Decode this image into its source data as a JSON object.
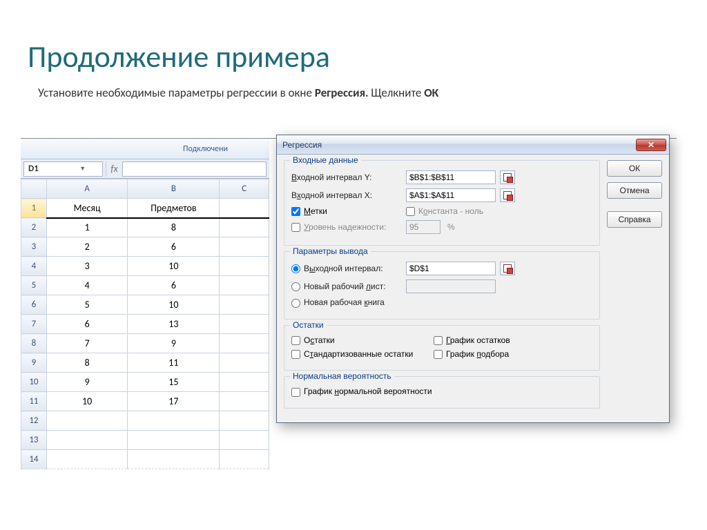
{
  "slide": {
    "title": "Продолжение примера",
    "subtitle_pre": "Установите необходимые параметры регрессии в окне ",
    "subtitle_bold1": "Регрессия.",
    "subtitle_mid": " Щелкните ",
    "subtitle_bold2": "ОК"
  },
  "ribbon": {
    "connections_label": "Подключени"
  },
  "namebox": {
    "value": "D1",
    "fx": "fx"
  },
  "sheet": {
    "columns": [
      "A",
      "B",
      "C"
    ],
    "selected_col_index": 3,
    "rows": [
      {
        "n": 1,
        "a": "Месяц",
        "b": "Предметов",
        "hdr": true
      },
      {
        "n": 2,
        "a": "1",
        "b": "8"
      },
      {
        "n": 3,
        "a": "2",
        "b": "6"
      },
      {
        "n": 4,
        "a": "3",
        "b": "10"
      },
      {
        "n": 5,
        "a": "4",
        "b": "6"
      },
      {
        "n": 6,
        "a": "5",
        "b": "10"
      },
      {
        "n": 7,
        "a": "6",
        "b": "13"
      },
      {
        "n": 8,
        "a": "7",
        "b": "9"
      },
      {
        "n": 9,
        "a": "8",
        "b": "11"
      },
      {
        "n": 10,
        "a": "9",
        "b": "15"
      },
      {
        "n": 11,
        "a": "10",
        "b": "17"
      },
      {
        "n": 12,
        "a": "",
        "b": ""
      },
      {
        "n": 13,
        "a": "",
        "b": ""
      },
      {
        "n": 14,
        "a": "",
        "b": ""
      }
    ]
  },
  "dialog": {
    "title": "Регрессия",
    "buttons": {
      "ok": "ОК",
      "cancel": "Отмена",
      "help": "Справка"
    },
    "grp_input": "Входные данные",
    "y_label": "Входной интервал Y:",
    "y_value": "$B$1:$B$11",
    "x_label": "Входной интервал X:",
    "x_value": "$A$1:$A$11",
    "labels_chk": "Метки",
    "const_zero": "Константа - ноль",
    "conf_label": "Уровень надежности:",
    "conf_value": "95",
    "pct": "%",
    "grp_output": "Параметры вывода",
    "out_range": "Выходной интервал:",
    "out_value": "$D$1",
    "new_ws": "Новый рабочий лист:",
    "new_wb": "Новая рабочая книга",
    "grp_resid": "Остатки",
    "resid": "Остатки",
    "resid_plot": "График остатков",
    "std_resid": "Стандартизованные остатки",
    "fit_plot": "График подбора",
    "grp_norm": "Нормальная вероятность",
    "norm_plot": "График нормальной вероятности"
  }
}
